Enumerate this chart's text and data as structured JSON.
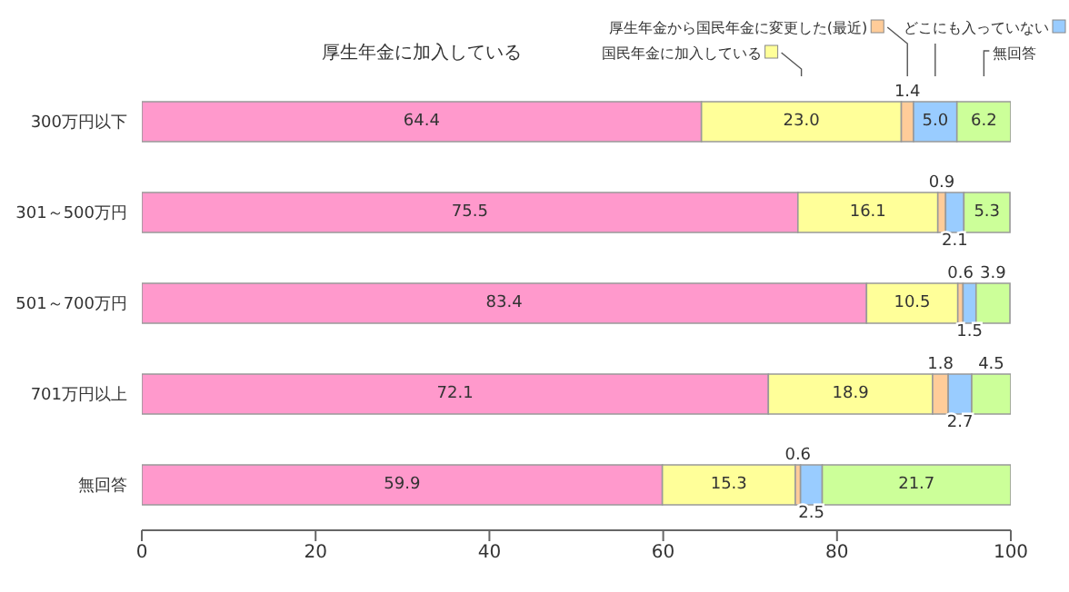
{
  "chart_data": {
    "type": "bar",
    "orientation": "horizontal",
    "stacked": true,
    "grid": false,
    "legend": "top right",
    "data_labels": true,
    "categories": [
      "300万円以下",
      "301～500万円",
      "501～700万円",
      "701万円以上",
      "無回答"
    ],
    "xlim": [
      0,
      100
    ],
    "xticks": [
      0,
      20,
      40,
      60,
      80,
      100
    ],
    "series": [
      {
        "name": "厚生年金に加入している",
        "color": "#ff99cc",
        "values": [
          64.4,
          75.5,
          83.4,
          72.1,
          59.9
        ],
        "value_labels": [
          "64.4",
          "75.5",
          "83.4",
          "72.1",
          "59.9"
        ]
      },
      {
        "name": "国民年金に加入している",
        "color": "#ffff99",
        "values": [
          23.0,
          16.1,
          10.5,
          18.9,
          15.3
        ],
        "value_labels": [
          "23.0",
          "16.1",
          "10.5",
          "18.9",
          "15.3"
        ]
      },
      {
        "name": "厚生年金から国民年金に変更した(最近)",
        "color": "#ffcc99",
        "values": [
          1.4,
          0.9,
          0.6,
          1.8,
          0.6
        ],
        "value_labels": [
          "1.4",
          "0.9",
          "0.6",
          "1.8",
          "0.6"
        ]
      },
      {
        "name": "どこにも入っていない",
        "color": "#99ccff",
        "values": [
          5.0,
          2.1,
          1.5,
          2.7,
          2.5
        ],
        "value_labels": [
          "5.0",
          "2.1",
          "1.5",
          "2.7",
          "2.5"
        ]
      },
      {
        "name": "無回答",
        "color": "#ccff99",
        "values": [
          6.2,
          5.3,
          3.9,
          4.5,
          21.7
        ],
        "value_labels": [
          "6.2",
          "5.3",
          "3.9",
          "4.5",
          "21.7"
        ]
      }
    ]
  }
}
